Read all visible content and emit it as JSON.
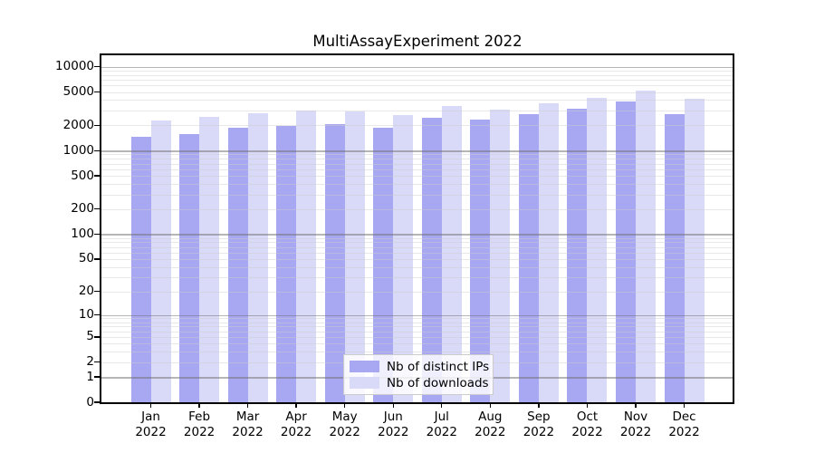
{
  "title": "MultiAssayExperiment 2022",
  "colors": {
    "distinct_ips": "#a8a8f2",
    "downloads": "#d9d9f8",
    "axis": "#000000",
    "grid_major": "#b0b0b0",
    "grid_minor": "#e6e6e6",
    "legend_border": "#cccccc",
    "background": "#ffffff"
  },
  "chart_data": {
    "type": "bar",
    "title": "MultiAssayExperiment 2022",
    "x_months": [
      "Jan",
      "Feb",
      "Mar",
      "Apr",
      "May",
      "Jun",
      "Jul",
      "Aug",
      "Sep",
      "Oct",
      "Nov",
      "Dec"
    ],
    "x_year": "2022",
    "categories": [
      "Jan 2022",
      "Feb 2022",
      "Mar 2022",
      "Apr 2022",
      "May 2022",
      "Jun 2022",
      "Jul 2022",
      "Aug 2022",
      "Sep 2022",
      "Oct 2022",
      "Nov 2022",
      "Dec 2022"
    ],
    "series": [
      {
        "name": "Nb of distinct IPs",
        "key": "distinct-ips",
        "color": "#a8a8f2",
        "values": [
          1470,
          1570,
          1890,
          1970,
          2080,
          1890,
          2460,
          2320,
          2740,
          3120,
          3810,
          2740
        ]
      },
      {
        "name": "Nb of downloads",
        "key": "downloads",
        "color": "#d9d9f8",
        "values": [
          2260,
          2520,
          2790,
          2970,
          2900,
          2620,
          3420,
          3050,
          3700,
          4280,
          5220,
          4100
        ]
      }
    ],
    "y_axis": {
      "scale": "log1p",
      "ticks": [
        0,
        1,
        2,
        5,
        10,
        20,
        50,
        100,
        200,
        500,
        1000,
        2000,
        5000,
        10000
      ],
      "top_log_value": 4.136
    },
    "grid": {
      "major_lines": [
        1,
        10,
        100,
        1000,
        10000
      ],
      "minor_multipliers": [
        2,
        3,
        4,
        5,
        6,
        7,
        8,
        9
      ],
      "minor_decades": [
        1,
        10,
        100,
        1000
      ],
      "orientation": "horizontal",
      "drawn_over_bars": true
    },
    "legend": {
      "position": "bottom-center",
      "entries": [
        "Nb of distinct IPs",
        "Nb of downloads"
      ]
    }
  }
}
